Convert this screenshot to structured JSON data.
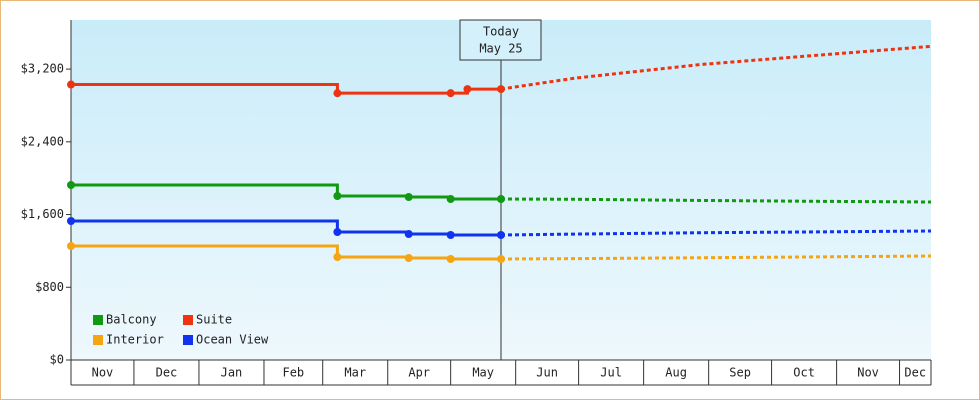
{
  "chart_data": {
    "type": "step-line",
    "today_label": "Today",
    "today_date": "May 25",
    "today_x": 205,
    "xlim": [
      0,
      410
    ],
    "xticks": [
      {
        "value": 0,
        "label": "Nov"
      },
      {
        "value": 30,
        "label": "Dec"
      },
      {
        "value": 61,
        "label": "Jan"
      },
      {
        "value": 92,
        "label": "Feb"
      },
      {
        "value": 120,
        "label": "Mar"
      },
      {
        "value": 151,
        "label": "Apr"
      },
      {
        "value": 181,
        "label": "May"
      },
      {
        "value": 212,
        "label": "Jun"
      },
      {
        "value": 242,
        "label": "Jul"
      },
      {
        "value": 273,
        "label": "Aug"
      },
      {
        "value": 304,
        "label": "Sep"
      },
      {
        "value": 334,
        "label": "Oct"
      },
      {
        "value": 365,
        "label": "Nov"
      },
      {
        "value": 395,
        "label": "Dec"
      }
    ],
    "ylim": [
      0,
      3740
    ],
    "yticks": [
      {
        "value": 0,
        "label": "$0"
      },
      {
        "value": 800,
        "label": "$800"
      },
      {
        "value": 1600,
        "label": "$1,600"
      },
      {
        "value": 2400,
        "label": "$2,400"
      },
      {
        "value": 3200,
        "label": "$3,200"
      }
    ],
    "series": [
      {
        "name": "Balcony",
        "color": "#119911",
        "x": [
          0,
          127,
          161,
          181,
          205
        ],
        "values": [
          1925,
          1804,
          1793,
          1771,
          1771
        ],
        "forecast_x": [
          205,
          240,
          300,
          360,
          410
        ],
        "forecast_values": [
          1771,
          1768,
          1755,
          1745,
          1738
        ]
      },
      {
        "name": "Suite",
        "color": "#ee3311",
        "x": [
          0,
          127,
          181,
          189,
          205
        ],
        "values": [
          3030,
          2935,
          2935,
          2980,
          2980
        ],
        "forecast_x": [
          205,
          240,
          300,
          360,
          410
        ],
        "forecast_values": [
          2980,
          3100,
          3250,
          3360,
          3450
        ]
      },
      {
        "name": "Interior",
        "color": "#f5a511",
        "x": [
          0,
          127,
          161,
          181,
          205
        ],
        "values": [
          1254,
          1133,
          1122,
          1111,
          1111
        ],
        "forecast_x": [
          205,
          240,
          300,
          360,
          410
        ],
        "forecast_values": [
          1111,
          1115,
          1125,
          1135,
          1144
        ]
      },
      {
        "name": "Ocean View",
        "color": "#1133ee",
        "x": [
          0,
          127,
          161,
          181,
          205
        ],
        "values": [
          1529,
          1408,
          1386,
          1375,
          1375
        ],
        "forecast_x": [
          205,
          240,
          300,
          360,
          410
        ],
        "forecast_values": [
          1375,
          1385,
          1400,
          1410,
          1419
        ]
      }
    ]
  }
}
